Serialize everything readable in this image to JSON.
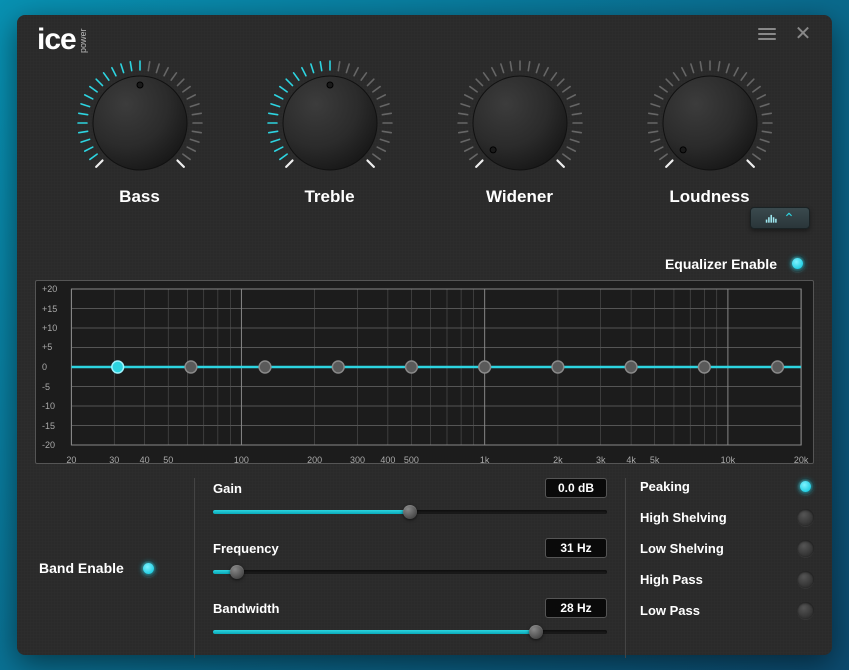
{
  "brand": {
    "name": "ice",
    "sub": "power"
  },
  "colors": {
    "accent": "#2dd4e0",
    "tick_off": "#666",
    "panel_bg": "#2a2a2a",
    "graph_bg": "#1c1c1c",
    "grid": "#555",
    "grid_minor": "#3a3a3a",
    "node_fill": "#666",
    "node_stroke": "#8a8a8a"
  },
  "knobs": [
    {
      "label": "Bass",
      "value_pct": 50,
      "tick_count": 31
    },
    {
      "label": "Treble",
      "value_pct": 50,
      "tick_count": 31
    },
    {
      "label": "Widener",
      "value_pct": 0,
      "tick_count": 31
    },
    {
      "label": "Loudness",
      "value_pct": 0,
      "tick_count": 31
    }
  ],
  "equalizer": {
    "enable_label": "Equalizer Enable",
    "enabled": true,
    "y_ticks": [
      20,
      15,
      10,
      5,
      0,
      -5,
      -10,
      -15,
      -20
    ],
    "y_labels": [
      "+20",
      "+15",
      "+10",
      "+5",
      "0",
      "-5",
      "-10",
      "-15",
      "-20"
    ],
    "x_ticks_hz": [
      20,
      30,
      40,
      50,
      70,
      100,
      200,
      300,
      400,
      500,
      700,
      1000,
      2000,
      3000,
      4000,
      5000,
      7000,
      10000,
      20000
    ],
    "x_labels": [
      "20",
      "30",
      "40",
      "50",
      "",
      "100",
      "200",
      "300",
      "400",
      "500",
      "",
      "1k",
      "2k",
      "3k",
      "4k",
      "5k",
      "",
      "10k",
      "20k"
    ],
    "log_min": 20,
    "log_max": 20000,
    "bands_hz": [
      31,
      62,
      125,
      250,
      500,
      1000,
      2000,
      4000,
      8000,
      16000
    ],
    "band_gains_db": [
      0,
      0,
      0,
      0,
      0,
      0,
      0,
      0,
      0,
      0
    ]
  },
  "band_enable": {
    "label": "Band Enable",
    "enabled": true
  },
  "sliders": {
    "gain": {
      "label": "Gain",
      "value": "0.0 dB",
      "pct": 50
    },
    "frequency": {
      "label": "Frequency",
      "value": "31 Hz",
      "pct": 6
    },
    "bandwidth": {
      "label": "Bandwidth",
      "value": "28 Hz",
      "pct": 82
    }
  },
  "filters": [
    {
      "label": "Peaking",
      "on": true
    },
    {
      "label": "High Shelving",
      "on": false
    },
    {
      "label": "Low Shelving",
      "on": false
    },
    {
      "label": "High Pass",
      "on": false
    },
    {
      "label": "Low Pass",
      "on": false
    }
  ]
}
